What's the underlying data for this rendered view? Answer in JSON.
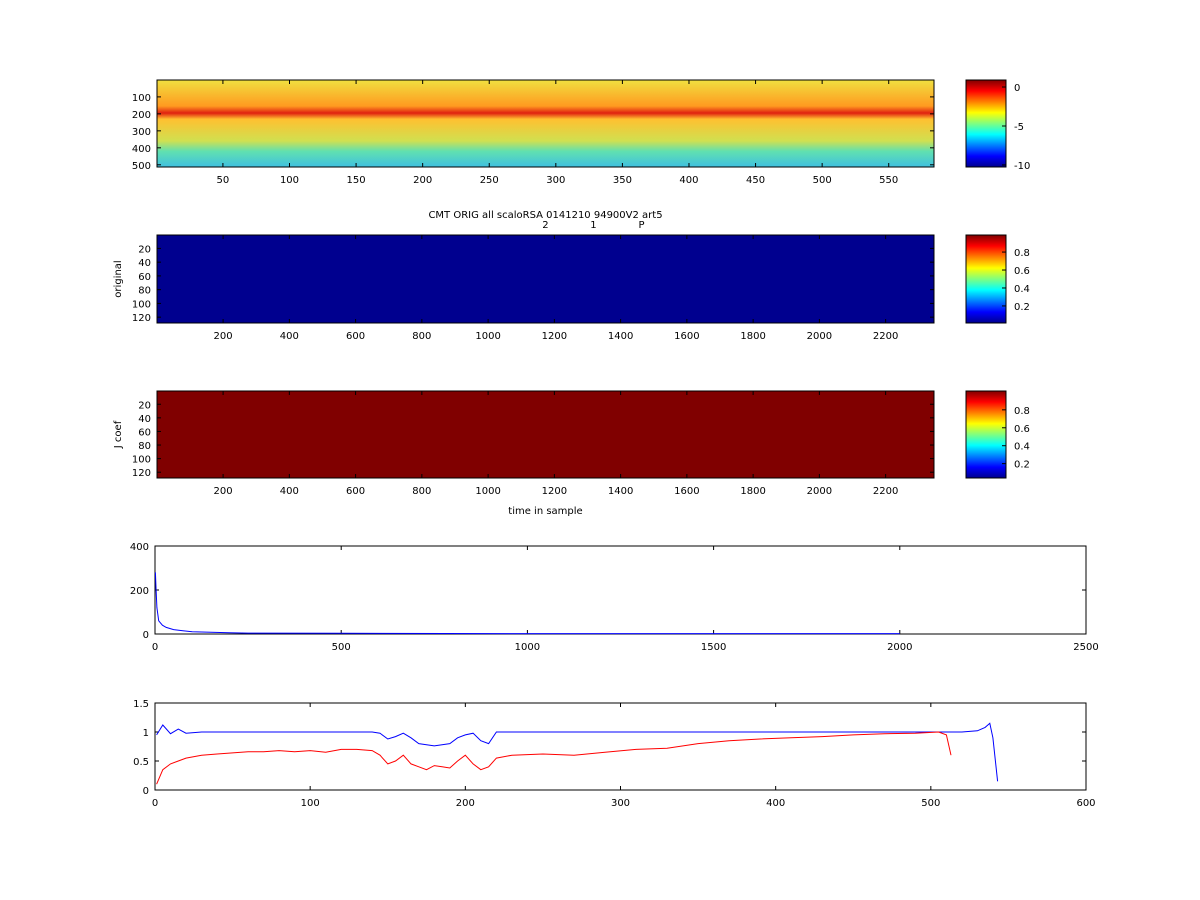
{
  "chart_data": [
    {
      "type": "heatmap",
      "xlim": [
        0.5,
        584
      ],
      "xticks": [
        50,
        100,
        150,
        200,
        250,
        300,
        350,
        400,
        450,
        500,
        550
      ],
      "ylim": [
        0.5,
        513
      ],
      "yticks": [
        100,
        200,
        300,
        400,
        500
      ],
      "ydir": "reverse",
      "colormap": "jet",
      "clim": [
        -10.26,
        0.9
      ],
      "cticks": [
        0,
        -5,
        -10
      ]
    },
    {
      "type": "heatmap",
      "title": "CMT ORIG all scaloRSA 0141210 94900V2 art5",
      "ylabel": "original",
      "annotations": [
        {
          "text": "2",
          "x": 1173
        },
        {
          "text": "1",
          "x": 1318
        },
        {
          "text": "P",
          "x": 1463
        }
      ],
      "xlim": [
        0.5,
        2346
      ],
      "xticks": [
        200,
        400,
        600,
        800,
        1000,
        1200,
        1400,
        1600,
        1800,
        2000,
        2200
      ],
      "ylim": [
        0.5,
        128.5
      ],
      "yticks": [
        20,
        40,
        60,
        80,
        100,
        120
      ],
      "ydir": "reverse",
      "colormap": "jet",
      "clim": [
        0.01,
        0.99
      ],
      "cticks": [
        0.2,
        0.4,
        0.6,
        0.8
      ]
    },
    {
      "type": "heatmap",
      "ylabel": "J coef",
      "xlabel": "time in sample",
      "xlim": [
        0.5,
        2346
      ],
      "xticks": [
        200,
        400,
        600,
        800,
        1000,
        1200,
        1400,
        1600,
        1800,
        2000,
        2200
      ],
      "ylim": [
        0.5,
        128.5
      ],
      "yticks": [
        20,
        40,
        60,
        80,
        100,
        120
      ],
      "ydir": "reverse",
      "colormap": "jet",
      "clim": [
        0.04,
        1.01
      ],
      "cticks": [
        0.2,
        0.4,
        0.6,
        0.8
      ]
    },
    {
      "type": "line",
      "xlim": [
        0,
        2500
      ],
      "xticks": [
        0,
        500,
        1000,
        1500,
        2000,
        2500
      ],
      "ylim": [
        0,
        400
      ],
      "yticks": [
        0,
        200,
        400
      ],
      "x": [
        1,
        3,
        5,
        10,
        20,
        30,
        50,
        75,
        100,
        150,
        200,
        250,
        500,
        1000,
        1500,
        2000
      ],
      "series": [
        {
          "color": "#0000ff",
          "values": [
            280,
            200,
            120,
            60,
            40,
            30,
            20,
            15,
            10,
            8,
            6,
            4,
            3,
            2,
            2,
            2
          ]
        }
      ]
    },
    {
      "type": "line",
      "xlim": [
        0,
        600
      ],
      "xticks": [
        0,
        100,
        200,
        300,
        400,
        500,
        600
      ],
      "ylim": [
        0,
        1.5
      ],
      "yticks": [
        0,
        0.5,
        1,
        1.5
      ],
      "x": [
        1,
        5,
        10,
        15,
        20,
        30,
        40,
        50,
        60,
        70,
        80,
        90,
        100,
        110,
        120,
        130,
        140,
        145,
        150,
        155,
        160,
        165,
        170,
        175,
        180,
        185,
        190,
        195,
        200,
        205,
        210,
        215,
        220,
        230,
        250,
        270,
        290,
        310,
        330,
        350,
        370,
        390,
        410,
        430,
        450,
        470,
        490,
        505,
        510,
        513,
        520,
        530,
        535,
        538,
        540,
        543
      ],
      "series": [
        {
          "color": "#0000ff",
          "values": [
            0.95,
            1.12,
            0.97,
            1.05,
            0.98,
            1,
            1,
            1,
            1,
            1,
            1,
            1,
            1,
            1,
            1,
            1,
            1,
            0.98,
            0.88,
            0.92,
            0.98,
            0.9,
            0.8,
            0.78,
            0.76,
            0.78,
            0.8,
            0.9,
            0.95,
            0.98,
            0.85,
            0.8,
            1,
            1,
            1,
            1,
            1,
            1,
            1,
            1,
            1,
            1,
            1,
            1,
            1,
            1,
            1,
            1,
            1,
            1,
            1,
            1.02,
            1.08,
            1.15,
            0.9,
            0.15
          ]
        },
        {
          "color": "#ff0000",
          "values": [
            0.1,
            0.35,
            0.45,
            0.5,
            0.55,
            0.6,
            0.62,
            0.64,
            0.66,
            0.66,
            0.68,
            0.66,
            0.68,
            0.65,
            0.7,
            0.7,
            0.68,
            0.6,
            0.45,
            0.5,
            0.6,
            0.45,
            0.4,
            0.35,
            0.42,
            0.4,
            0.38,
            0.5,
            0.6,
            0.45,
            0.35,
            0.4,
            0.55,
            0.6,
            0.62,
            0.6,
            0.65,
            0.7,
            0.72,
            0.8,
            0.85,
            0.88,
            0.9,
            0.92,
            0.95,
            0.97,
            0.98,
            1,
            0.95,
            0.6,
            null,
            null,
            null,
            null,
            null,
            null
          ]
        }
      ]
    }
  ]
}
